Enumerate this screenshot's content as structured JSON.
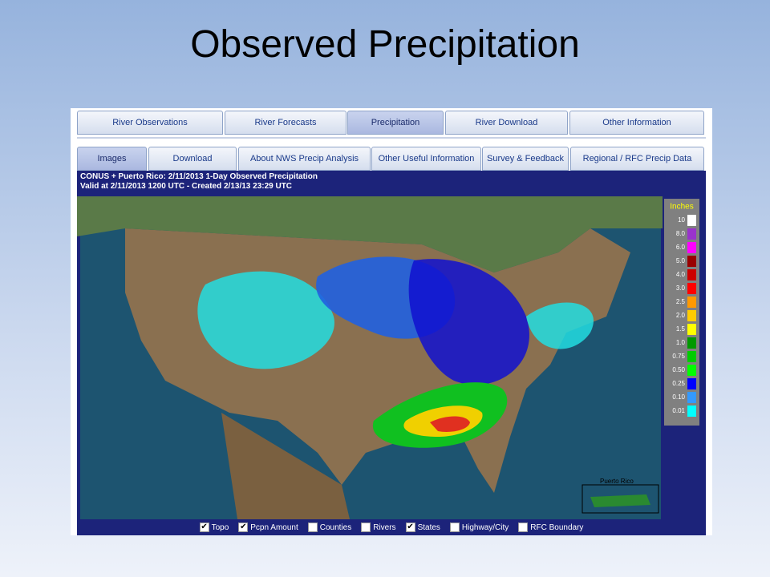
{
  "slide_title": "Observed Precipitation",
  "tabs_primary": [
    {
      "label": "River Observations",
      "active": false
    },
    {
      "label": "River Forecasts",
      "active": false
    },
    {
      "label": "Precipitation",
      "active": true
    },
    {
      "label": "River Download",
      "active": false
    },
    {
      "label": "Other Information",
      "active": false
    }
  ],
  "tabs_secondary": [
    {
      "label": "Images",
      "active": true
    },
    {
      "label": "Download",
      "active": false
    },
    {
      "label": "About NWS Precip Analysis",
      "active": false
    },
    {
      "label": "Other Useful Information",
      "active": false
    },
    {
      "label": "Survey & Feedback",
      "active": false
    },
    {
      "label": "Regional / RFC Precip Data",
      "active": false
    }
  ],
  "header": {
    "line1": "CONUS + Puerto Rico: 2/11/2013 1-Day Observed Precipitation",
    "line2": "Valid at 2/11/2013 1200 UTC - Created 2/13/13 23:29 UTC"
  },
  "map": {
    "inset_label": "Puerto Rico"
  },
  "legend": {
    "title": "Inches",
    "entries": [
      {
        "label": "10",
        "color": "#ffffff"
      },
      {
        "label": "8.0",
        "color": "#9933cc"
      },
      {
        "label": "6.0",
        "color": "#ff00ff"
      },
      {
        "label": "5.0",
        "color": "#990000"
      },
      {
        "label": "4.0",
        "color": "#cc0000"
      },
      {
        "label": "3.0",
        "color": "#ff0000"
      },
      {
        "label": "2.5",
        "color": "#ff9900"
      },
      {
        "label": "2.0",
        "color": "#ffcc00"
      },
      {
        "label": "1.5",
        "color": "#ffff00"
      },
      {
        "label": "1.0",
        "color": "#009900"
      },
      {
        "label": "0.75",
        "color": "#00cc00"
      },
      {
        "label": "0.50",
        "color": "#00ff00"
      },
      {
        "label": "0.25",
        "color": "#0000ff"
      },
      {
        "label": "0.10",
        "color": "#3399ff"
      },
      {
        "label": "0.01",
        "color": "#00ffff"
      }
    ]
  },
  "options": [
    {
      "label": "Topo",
      "checked": true
    },
    {
      "label": "Pcpn Amount",
      "checked": true
    },
    {
      "label": "Counties",
      "checked": false
    },
    {
      "label": "Rivers",
      "checked": false
    },
    {
      "label": "States",
      "checked": true
    },
    {
      "label": "Highway/City",
      "checked": false
    },
    {
      "label": "RFC Boundary",
      "checked": false
    }
  ]
}
